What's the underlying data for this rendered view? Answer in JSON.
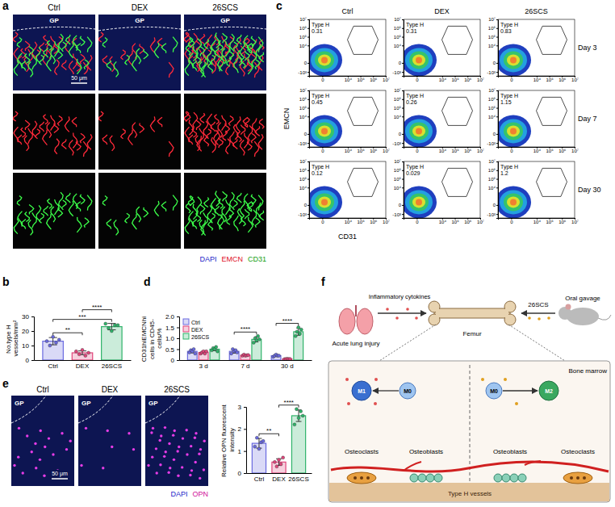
{
  "panel_labels": [
    "a",
    "b",
    "c",
    "d",
    "e",
    "f"
  ],
  "panel_a": {
    "columns": [
      "Ctrl",
      "DEX",
      "26SCS"
    ],
    "region_label": "GP",
    "scale_bar": "50 μm",
    "channels": [
      {
        "name": "DAPI",
        "color": "#2323c8"
      },
      {
        "name": "EMCN",
        "color": "#e0102a"
      },
      {
        "name": "CD31",
        "color": "#14a014"
      }
    ]
  },
  "flow_cytometry": {
    "columns": [
      "Ctrl",
      "DEX",
      "26SCS"
    ],
    "rows": [
      "Day 3",
      "Day 7",
      "Day 30"
    ],
    "gate_label": "Type H",
    "values": [
      [
        0.31,
        0.31,
        0.83
      ],
      [
        0.45,
        0.26,
        1.15
      ],
      [
        0.12,
        0.029,
        1.2
      ]
    ],
    "x_label": "CD31",
    "y_label": "EMCN",
    "log": true,
    "xlim": [
      -1000,
      10000000
    ],
    "ylim": [
      -3000,
      10000000
    ],
    "xticks": [
      0,
      {
        "value": 10000,
        "label": "10⁴"
      },
      {
        "value": 100000,
        "label": "10⁵"
      },
      {
        "value": 1000000,
        "label": "10⁶"
      },
      {
        "value": 10000000,
        "label": "10⁷"
      }
    ],
    "yticks": [
      {
        "value": -1000,
        "label": "-10³"
      },
      0,
      {
        "value": 10000,
        "label": "10⁴"
      },
      {
        "value": 100000,
        "label": "10⁵"
      },
      {
        "value": 1000000,
        "label": "10⁶"
      },
      {
        "value": 10000000,
        "label": "10⁷"
      }
    ]
  },
  "chart_data": [
    {
      "type": "bar",
      "y_label": "No.type H vessels/mm²",
      "categories": [
        "Ctrl",
        "DEX",
        "26SCS"
      ],
      "values": [
        13,
        5,
        23
      ],
      "errors": [
        2.5,
        1.3,
        2.2
      ],
      "points": [
        [
          13,
          10,
          16,
          12,
          14
        ],
        [
          6,
          4,
          7,
          3,
          5
        ],
        [
          25,
          22,
          20,
          24,
          24
        ]
      ],
      "colors": [
        "#6a6ae0",
        "#e0457b",
        "#2fb36a"
      ],
      "ylim": [
        0,
        30
      ],
      "yticks": [
        0,
        10,
        20,
        30
      ],
      "annotations": [
        {
          "text": "**",
          "pair": [
            0,
            1
          ]
        },
        {
          "text": "***",
          "pair": [
            0,
            2
          ]
        },
        {
          "text": "****",
          "pair": [
            1,
            2
          ]
        }
      ]
    },
    {
      "type": "bar",
      "y_label": "CD31hiEMCNhi cells in CD45- cells/%",
      "categories": [
        "3 d",
        "7 d",
        "30 d"
      ],
      "series": [
        {
          "name": "Ctrl",
          "color": "#6a6ae0",
          "values": [
            0.4,
            0.4,
            0.2
          ],
          "errors": [
            0.07,
            0.08,
            0.04
          ],
          "points": [
            [
              0.35,
              0.45,
              0.4,
              0.5,
              0.3
            ],
            [
              0.3,
              0.5,
              0.4,
              0.45,
              0.35
            ],
            [
              0.15,
              0.2,
              0.25,
              0.2,
              0.2
            ]
          ]
        },
        {
          "name": "DEX",
          "color": "#e0457b",
          "values": [
            0.35,
            0.22,
            0.05
          ],
          "errors": [
            0.04,
            0.02,
            0.01
          ],
          "points": [
            [
              0.3,
              0.35,
              0.4,
              0.3,
              0.4
            ],
            [
              0.2,
              0.25,
              0.2,
              0.22,
              0.23
            ],
            [
              0.04,
              0.05,
              0.06,
              0.05,
              0.05
            ]
          ]
        },
        {
          "name": "26SCS",
          "color": "#2fb36a",
          "values": [
            0.5,
            0.95,
            1.3
          ],
          "errors": [
            0.07,
            0.12,
            0.16
          ],
          "points": [
            [
              0.45,
              0.55,
              0.5,
              0.6,
              0.4
            ],
            [
              0.8,
              1.0,
              0.9,
              1.1,
              0.95
            ],
            [
              1.1,
              1.3,
              1.5,
              1.2,
              1.4
            ]
          ]
        }
      ],
      "ylim": [
        0,
        2
      ],
      "yticks": [
        0,
        0.5,
        {
          "value": 1,
          "label": "1.0"
        },
        1.5,
        {
          "value": 2,
          "label": "2.0"
        }
      ],
      "legend": "top-left",
      "annotations": [
        {
          "text": "****",
          "category": 1
        },
        {
          "text": "****",
          "category": 2
        }
      ]
    },
    {
      "type": "bar",
      "y_label": "Relative OPN fluorescent intensity",
      "categories": [
        "Ctrl",
        "DEX",
        "26SCS"
      ],
      "values": [
        1.35,
        0.5,
        2.6
      ],
      "errors": [
        0.22,
        0.15,
        0.26
      ],
      "points": [
        [
          1.2,
          1.6,
          1.1,
          1.4,
          1.45
        ],
        [
          0.5,
          0.3,
          0.6,
          0.4,
          0.7
        ],
        [
          2.2,
          2.9,
          2.5,
          2.8,
          2.6
        ]
      ],
      "colors": [
        "#6a6ae0",
        "#e0457b",
        "#2fb36a"
      ],
      "ylim": [
        0,
        3
      ],
      "yticks": [
        0,
        1,
        2,
        3
      ],
      "annotations": [
        {
          "text": "**",
          "pair": [
            0,
            1
          ]
        },
        {
          "text": "****",
          "pair": [
            1,
            2
          ]
        }
      ]
    }
  ],
  "panel_e": {
    "columns": [
      "Ctrl",
      "DEX",
      "26SCS"
    ],
    "region_label": "GP",
    "scale_bar": "50 μm",
    "channels": [
      {
        "name": "DAPI",
        "color": "#2323c8"
      },
      {
        "name": "OPN",
        "color": "#d0109a"
      }
    ]
  },
  "panel_f": {
    "sources": {
      "injury": "Acute lung injury",
      "mediator": "Inflammatory cytokines",
      "treatment": "26SCS",
      "route": "Oral gavage"
    },
    "organ": "Femur",
    "inset": {
      "region": "Bone marrow",
      "left": {
        "macrophages": [
          "M1",
          "M0"
        ],
        "osteoclasts": "Osteoclasts",
        "osteoblasts": "Osteoblasts"
      },
      "right": {
        "macrophages": [
          "M0",
          "M2"
        ],
        "osteoblasts": "Osteoblasts",
        "osteoclasts": "Osteoclasts"
      },
      "vessels": "Type H vessels"
    }
  }
}
